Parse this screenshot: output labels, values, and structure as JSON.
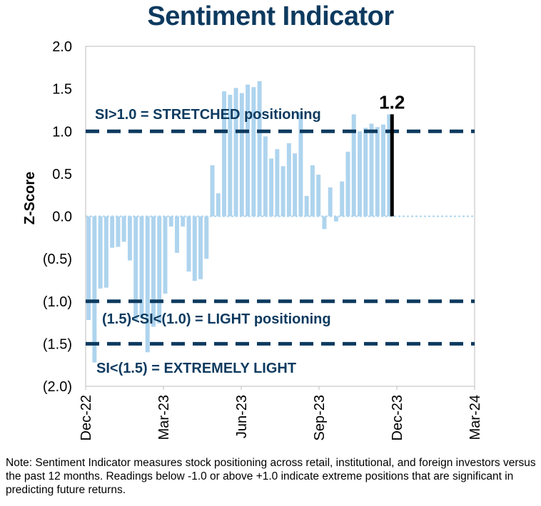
{
  "chart_data": {
    "type": "bar",
    "title": "Sentiment Indicator",
    "ylabel": "Z-Score",
    "xlabel": "",
    "ylim": [
      -2.0,
      2.0
    ],
    "y_ticks": [
      2.0,
      1.5,
      1.0,
      0.5,
      0.0,
      -0.5,
      -1.0,
      -1.5,
      -2.0
    ],
    "y_tick_labels": [
      "2.0",
      "1.5",
      "1.0",
      "0.5",
      "0.0",
      "(0.5)",
      "(1.0)",
      "(1.5)",
      "(2.0)"
    ],
    "x_tick_labels": [
      "Dec-22",
      "Mar-23",
      "Jun-23",
      "Sep-23",
      "Dec-23",
      "Mar-24"
    ],
    "x_range_weeks": 66,
    "series": [
      {
        "name": "Sentiment Indicator (weekly)",
        "color": "#aed4ee",
        "values": [
          -1.22,
          -1.72,
          -0.85,
          -0.84,
          -0.37,
          -0.36,
          -0.3,
          -0.52,
          -1.22,
          -1.2,
          -1.6,
          -1.3,
          -1.26,
          -0.91,
          -0.12,
          -0.43,
          -0.12,
          -0.65,
          -0.76,
          -0.74,
          -0.5,
          0.6,
          0.27,
          1.47,
          1.43,
          1.51,
          1.45,
          1.55,
          1.52,
          1.59,
          0.94,
          0.68,
          0.79,
          0.59,
          0.86,
          0.74,
          1.23,
          0.24,
          0.6,
          0.49,
          -0.15,
          0.34,
          -0.06,
          0.41,
          0.76,
          1.2,
          1.0,
          1.04,
          1.09,
          1.05,
          1.08,
          1.2
        ]
      }
    ],
    "latest": {
      "value": 1.2,
      "label": "1.2",
      "color": "#000000"
    },
    "thresholds": [
      {
        "value": 1.0,
        "label": "SI>1.0 = STRETCHED positioning"
      },
      {
        "value": -1.0,
        "label": "(1.5)<SI<(1.0) = LIGHT positioning"
      },
      {
        "value": -1.5,
        "label": "SI<(1.5) = EXTREMELY LIGHT"
      }
    ],
    "threshold_color": "#0d3a5f",
    "grid": false
  },
  "note": "Note: Sentiment Indicator measures stock positioning across retail, institutional, and foreign investors versus the past 12 months. Readings below -1.0 or above +1.0 indicate extreme positions that are significant in predicting future returns."
}
